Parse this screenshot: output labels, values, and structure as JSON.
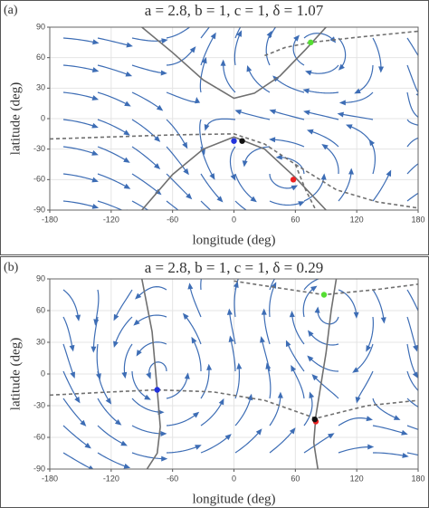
{
  "chart_data": [
    {
      "type": "scatter",
      "panel_label": "(a)",
      "title": "a = 2.8, b = 1, c = 1, δ = 1.07",
      "x_label": "longitude (deg)",
      "y_label": "latitude (deg)",
      "xlim": [
        -180,
        180
      ],
      "ylim": [
        -90,
        90
      ],
      "xticks": [
        -180,
        -120,
        -60,
        0,
        60,
        120,
        180
      ],
      "yticks": [
        -90,
        -60,
        -30,
        0,
        30,
        60,
        90
      ],
      "grid": true,
      "stream_color": "#3d6db5",
      "curve_color": "#707070",
      "points": {
        "x": [
          75,
          0,
          8,
          58
        ],
        "y": [
          75,
          -22,
          -22,
          -60
        ],
        "colors": [
          "#55dd33",
          "#2233dd",
          "#111111",
          "#ee2222"
        ]
      },
      "curves": [
        {
          "style": "solid",
          "x": [
            -90,
            -60,
            -30,
            0,
            20,
            45,
            70,
            90
          ],
          "y": [
            90,
            65,
            38,
            20,
            25,
            42,
            68,
            90
          ]
        },
        {
          "style": "solid",
          "x": [
            -90,
            -60,
            -30,
            0,
            30,
            60,
            90
          ],
          "y": [
            -90,
            -55,
            -30,
            -18,
            -30,
            -58,
            -90
          ]
        },
        {
          "style": "dashed",
          "x": [
            -180,
            -120,
            -60,
            0,
            30,
            60,
            100,
            140,
            180
          ],
          "y": [
            -20,
            -18,
            -16,
            -15,
            -25,
            -45,
            -70,
            -82,
            -88
          ]
        },
        {
          "style": "dashed",
          "x": [
            30,
            50,
            75,
            120,
            180
          ],
          "y": [
            62,
            70,
            75,
            80,
            86
          ]
        },
        {
          "style": "dashed",
          "x": [
            60,
            70,
            80
          ],
          "y": [
            -45,
            -70,
            -90
          ]
        }
      ]
    },
    {
      "type": "scatter",
      "panel_label": "(b)",
      "title": "a = 2.8, b = 1, c = 1, δ = 0.29",
      "x_label": "longitude (deg)",
      "y_label": "latitude (deg)",
      "xlim": [
        -180,
        180
      ],
      "ylim": [
        -90,
        90
      ],
      "xticks": [
        -180,
        -120,
        -60,
        0,
        60,
        120,
        180
      ],
      "yticks": [
        -90,
        -60,
        -30,
        0,
        30,
        60,
        90
      ],
      "grid": true,
      "stream_color": "#3d6db5",
      "curve_color": "#707070",
      "points": {
        "x": [
          88,
          -75,
          80,
          79
        ],
        "y": [
          75,
          -15,
          -45,
          -43
        ],
        "colors": [
          "#55dd33",
          "#2233dd",
          "#ee2222",
          "#111111"
        ]
      },
      "curves": [
        {
          "style": "solid",
          "x": [
            -90,
            -80,
            -75,
            -72,
            -75,
            -85
          ],
          "y": [
            90,
            40,
            -15,
            -50,
            -75,
            -90
          ]
        },
        {
          "style": "solid",
          "x": [
            100,
            95,
            90,
            85,
            80,
            78,
            82
          ],
          "y": [
            90,
            60,
            20,
            -10,
            -40,
            -65,
            -90
          ]
        },
        {
          "style": "dashed",
          "x": [
            -180,
            -120,
            -75,
            -20,
            30,
            80,
            130,
            180
          ],
          "y": [
            -20,
            -17,
            -15,
            -17,
            -25,
            -42,
            -30,
            -25
          ]
        },
        {
          "style": "dashed",
          "x": [
            0,
            40,
            88,
            140,
            180
          ],
          "y": [
            88,
            82,
            75,
            80,
            85
          ]
        }
      ]
    }
  ]
}
